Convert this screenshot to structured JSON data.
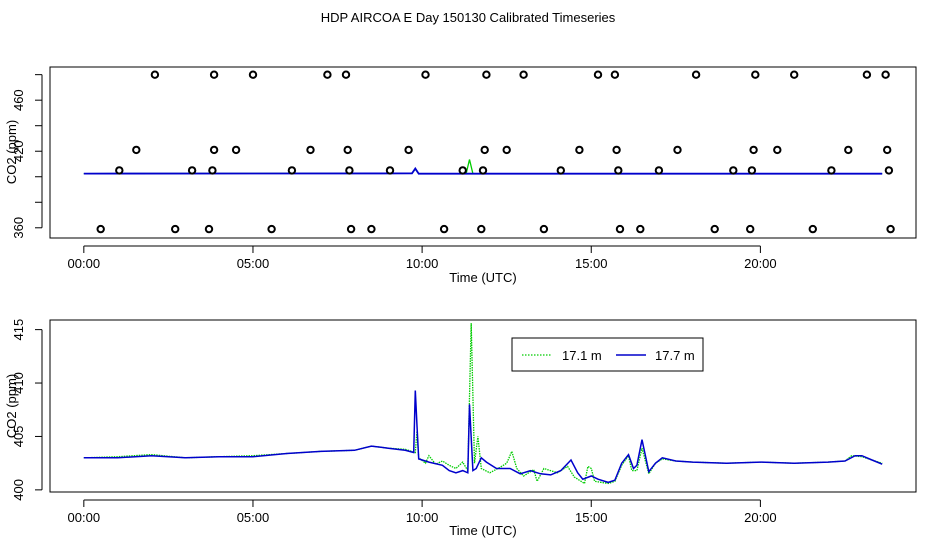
{
  "title": "HDP AIRCOA E  Day 150130  Calibrated Timeseries",
  "chart_data": [
    {
      "type": "scatter+line",
      "xlabel": "Time (UTC)",
      "ylabel": "CO2 (ppm)",
      "xlim": [
        -1.0,
        24.6
      ],
      "ylim": [
        352,
        486
      ],
      "xticks": [
        0,
        5,
        10,
        15,
        20
      ],
      "xtick_labels": [
        "00:00",
        "05:00",
        "10:00",
        "15:00",
        "20:00"
      ],
      "yticks": [
        360,
        380,
        400,
        420,
        440,
        460,
        480
      ],
      "ytick_labels": [
        "360",
        "",
        "",
        "420",
        "",
        "460",
        ""
      ],
      "calibration_points": [
        {
          "x": 0.5,
          "y": 359
        },
        {
          "x": 1.05,
          "y": 405
        },
        {
          "x": 1.55,
          "y": 421
        },
        {
          "x": 2.1,
          "y": 480
        },
        {
          "x": 2.7,
          "y": 359
        },
        {
          "x": 3.2,
          "y": 405
        },
        {
          "x": 3.7,
          "y": 359
        },
        {
          "x": 3.8,
          "y": 405
        },
        {
          "x": 3.85,
          "y": 421
        },
        {
          "x": 3.85,
          "y": 480
        },
        {
          "x": 4.5,
          "y": 421
        },
        {
          "x": 5.0,
          "y": 480
        },
        {
          "x": 5.55,
          "y": 359
        },
        {
          "x": 6.15,
          "y": 405
        },
        {
          "x": 6.7,
          "y": 421
        },
        {
          "x": 7.2,
          "y": 480
        },
        {
          "x": 7.75,
          "y": 480
        },
        {
          "x": 7.8,
          "y": 421
        },
        {
          "x": 7.85,
          "y": 405
        },
        {
          "x": 7.9,
          "y": 359
        },
        {
          "x": 8.5,
          "y": 359
        },
        {
          "x": 9.05,
          "y": 405
        },
        {
          "x": 9.6,
          "y": 421
        },
        {
          "x": 10.1,
          "y": 480
        },
        {
          "x": 10.65,
          "y": 359
        },
        {
          "x": 11.2,
          "y": 405
        },
        {
          "x": 11.75,
          "y": 359
        },
        {
          "x": 11.8,
          "y": 405
        },
        {
          "x": 11.85,
          "y": 421
        },
        {
          "x": 11.9,
          "y": 480
        },
        {
          "x": 12.5,
          "y": 421
        },
        {
          "x": 13.0,
          "y": 480
        },
        {
          "x": 13.6,
          "y": 359
        },
        {
          "x": 14.1,
          "y": 405
        },
        {
          "x": 14.65,
          "y": 421
        },
        {
          "x": 15.2,
          "y": 480
        },
        {
          "x": 15.7,
          "y": 480
        },
        {
          "x": 15.75,
          "y": 421
        },
        {
          "x": 15.8,
          "y": 405
        },
        {
          "x": 15.85,
          "y": 359
        },
        {
          "x": 16.45,
          "y": 359
        },
        {
          "x": 17.0,
          "y": 405
        },
        {
          "x": 17.55,
          "y": 421
        },
        {
          "x": 18.1,
          "y": 480
        },
        {
          "x": 18.65,
          "y": 359
        },
        {
          "x": 19.2,
          "y": 405
        },
        {
          "x": 19.7,
          "y": 359
        },
        {
          "x": 19.75,
          "y": 405
        },
        {
          "x": 19.8,
          "y": 421
        },
        {
          "x": 19.85,
          "y": 480
        },
        {
          "x": 20.5,
          "y": 421
        },
        {
          "x": 21.0,
          "y": 480
        },
        {
          "x": 21.55,
          "y": 359
        },
        {
          "x": 22.1,
          "y": 405
        },
        {
          "x": 22.6,
          "y": 421
        },
        {
          "x": 23.15,
          "y": 480
        },
        {
          "x": 23.7,
          "y": 480
        },
        {
          "x": 23.75,
          "y": 421
        },
        {
          "x": 23.8,
          "y": 405
        },
        {
          "x": 23.85,
          "y": 359
        }
      ]
    },
    {
      "type": "line",
      "xlabel": "Time (UTC)",
      "ylabel": "CO2 (ppm)",
      "xlim": [
        -1.0,
        24.6
      ],
      "ylim": [
        399.8,
        415.9
      ],
      "xticks": [
        0,
        5,
        10,
        15,
        20
      ],
      "xtick_labels": [
        "00:00",
        "05:00",
        "10:00",
        "15:00",
        "20:00"
      ],
      "yticks": [
        400,
        405,
        410,
        415
      ],
      "ytick_labels": [
        "400",
        "405",
        "410",
        "415"
      ],
      "legend_position": "top-center",
      "series": [
        {
          "name": "17.1 m",
          "color": "#00cc00",
          "dash": "dotted",
          "points": [
            [
              0,
              403.0
            ],
            [
              1,
              403.1
            ],
            [
              2,
              403.3
            ],
            [
              3,
              403.0
            ],
            [
              4,
              403.1
            ],
            [
              5,
              403.2
            ],
            [
              6,
              403.4
            ],
            [
              7,
              403.6
            ],
            [
              8,
              403.7
            ],
            [
              8.5,
              404.1
            ],
            [
              9,
              403.9
            ],
            [
              9.5,
              403.8
            ],
            [
              9.8,
              403.5
            ],
            [
              9.85,
              405.5
            ],
            [
              9.9,
              403.0
            ],
            [
              10.1,
              402.5
            ],
            [
              10.2,
              403.2
            ],
            [
              10.4,
              402.4
            ],
            [
              10.6,
              402.7
            ],
            [
              10.8,
              402.3
            ],
            [
              11.0,
              402.0
            ],
            [
              11.2,
              402.6
            ],
            [
              11.35,
              401.8
            ],
            [
              11.45,
              415.6
            ],
            [
              11.55,
              402.5
            ],
            [
              11.65,
              405.0
            ],
            [
              11.75,
              402.0
            ],
            [
              12.0,
              401.6
            ],
            [
              12.3,
              402.1
            ],
            [
              12.5,
              402.5
            ],
            [
              12.65,
              403.6
            ],
            [
              12.8,
              402.0
            ],
            [
              13.0,
              401.3
            ],
            [
              13.3,
              401.9
            ],
            [
              13.4,
              400.8
            ],
            [
              13.6,
              402.0
            ],
            [
              14.0,
              401.6
            ],
            [
              14.3,
              402.2
            ],
            [
              14.5,
              401.2
            ],
            [
              14.8,
              400.6
            ],
            [
              14.9,
              402.2
            ],
            [
              15.0,
              402.0
            ],
            [
              15.1,
              400.8
            ],
            [
              15.5,
              400.6
            ],
            [
              15.7,
              400.8
            ],
            [
              15.9,
              402.3
            ],
            [
              16.1,
              403.2
            ],
            [
              16.2,
              401.8
            ],
            [
              16.35,
              401.8
            ],
            [
              16.5,
              403.9
            ],
            [
              16.7,
              401.5
            ],
            [
              16.9,
              402.5
            ],
            [
              17.1,
              402.9
            ],
            [
              17.5,
              402.7
            ],
            [
              18,
              402.6
            ],
            [
              19,
              402.5
            ],
            [
              20,
              402.6
            ],
            [
              21,
              402.5
            ],
            [
              22,
              402.6
            ],
            [
              22.5,
              402.7
            ],
            [
              22.7,
              403.2
            ],
            [
              23,
              403.1
            ],
            [
              23.3,
              402.8
            ],
            [
              23.6,
              402.5
            ]
          ]
        },
        {
          "name": "17.7 m",
          "color": "#0000cc",
          "dash": "solid",
          "points": [
            [
              0,
              403.0
            ],
            [
              1,
              403.0
            ],
            [
              2,
              403.2
            ],
            [
              3,
              403.0
            ],
            [
              4,
              403.1
            ],
            [
              5,
              403.1
            ],
            [
              6,
              403.4
            ],
            [
              7,
              403.6
            ],
            [
              8,
              403.7
            ],
            [
              8.5,
              404.1
            ],
            [
              9,
              403.9
            ],
            [
              9.5,
              403.7
            ],
            [
              9.75,
              403.5
            ],
            [
              9.8,
              409.3
            ],
            [
              9.85,
              406.0
            ],
            [
              9.9,
              402.9
            ],
            [
              10.2,
              402.6
            ],
            [
              10.6,
              402.3
            ],
            [
              10.8,
              401.8
            ],
            [
              11.0,
              401.6
            ],
            [
              11.2,
              401.8
            ],
            [
              11.35,
              401.6
            ],
            [
              11.4,
              408.0
            ],
            [
              11.5,
              401.8
            ],
            [
              11.6,
              402.0
            ],
            [
              11.75,
              403.0
            ],
            [
              11.9,
              402.6
            ],
            [
              12.2,
              402.0
            ],
            [
              12.6,
              402.0
            ],
            [
              12.9,
              401.5
            ],
            [
              13.2,
              401.8
            ],
            [
              13.5,
              401.5
            ],
            [
              13.8,
              401.4
            ],
            [
              14.1,
              401.8
            ],
            [
              14.4,
              402.8
            ],
            [
              14.6,
              401.6
            ],
            [
              14.75,
              401.0
            ],
            [
              15.0,
              401.3
            ],
            [
              15.2,
              401.0
            ],
            [
              15.5,
              400.7
            ],
            [
              15.7,
              400.9
            ],
            [
              15.9,
              402.5
            ],
            [
              16.1,
              403.3
            ],
            [
              16.25,
              402.0
            ],
            [
              16.35,
              402.3
            ],
            [
              16.5,
              404.7
            ],
            [
              16.7,
              401.7
            ],
            [
              16.9,
              402.5
            ],
            [
              17.1,
              403.0
            ],
            [
              17.5,
              402.7
            ],
            [
              18,
              402.6
            ],
            [
              19,
              402.5
            ],
            [
              20,
              402.6
            ],
            [
              21,
              402.5
            ],
            [
              22,
              402.6
            ],
            [
              22.5,
              402.7
            ],
            [
              22.8,
              403.2
            ],
            [
              23,
              403.2
            ],
            [
              23.3,
              402.8
            ],
            [
              23.6,
              402.4
            ]
          ]
        }
      ]
    }
  ]
}
